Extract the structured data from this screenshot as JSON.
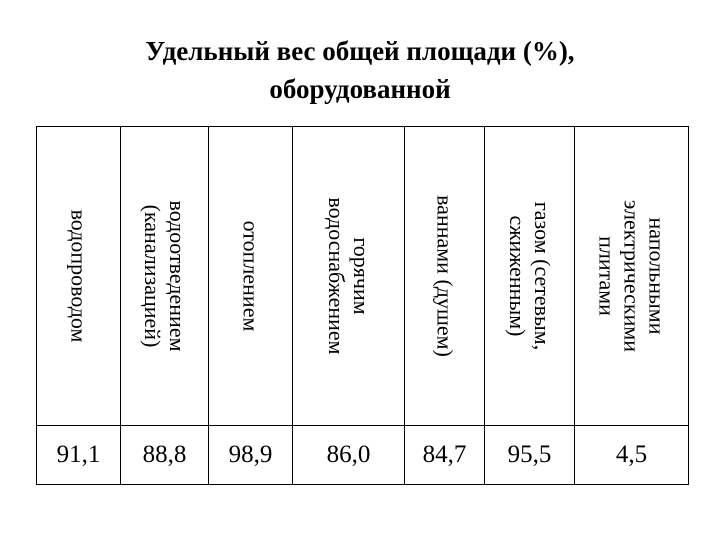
{
  "title": {
    "line1": "Удельный вес общей площади (%),",
    "line2": "оборудованной"
  },
  "columns": [
    {
      "lines": [
        "водопроводом"
      ],
      "value": "91,1"
    },
    {
      "lines": [
        "водоотведением",
        "(канализацией)"
      ],
      "value": "88,8"
    },
    {
      "lines": [
        "отоплением"
      ],
      "value": "98,9"
    },
    {
      "lines": [
        "горячим",
        "водоснабжением"
      ],
      "value": "86,0"
    },
    {
      "lines": [
        "ваннами (душем)"
      ],
      "value": "84,7"
    },
    {
      "lines": [
        "газом (сетевым,",
        "сжиженным)"
      ],
      "value": "95,5"
    },
    {
      "lines": [
        "напольными",
        "электрическими",
        "плитами"
      ],
      "value": "4,5"
    }
  ]
}
